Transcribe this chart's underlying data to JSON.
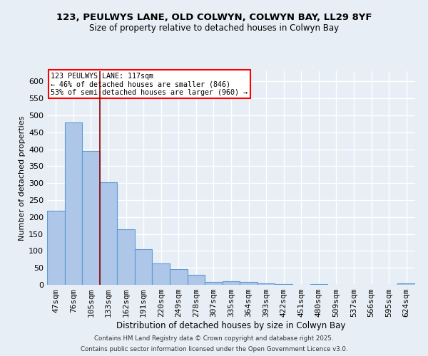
{
  "title_line1": "123, PEULWYS LANE, OLD COLWYN, COLWYN BAY, LL29 8YF",
  "title_line2": "Size of property relative to detached houses in Colwyn Bay",
  "xlabel": "Distribution of detached houses by size in Colwyn Bay",
  "ylabel": "Number of detached properties",
  "footer_line1": "Contains HM Land Registry data © Crown copyright and database right 2025.",
  "footer_line2": "Contains public sector information licensed under the Open Government Licence v3.0.",
  "categories": [
    "47sqm",
    "76sqm",
    "105sqm",
    "133sqm",
    "162sqm",
    "191sqm",
    "220sqm",
    "249sqm",
    "278sqm",
    "307sqm",
    "335sqm",
    "364sqm",
    "393sqm",
    "422sqm",
    "451sqm",
    "480sqm",
    "509sqm",
    "537sqm",
    "566sqm",
    "595sqm",
    "624sqm"
  ],
  "values": [
    218,
    478,
    395,
    302,
    163,
    105,
    63,
    47,
    30,
    9,
    10,
    8,
    4,
    2,
    0,
    3,
    0,
    1,
    0,
    0,
    4
  ],
  "bar_color": "#aec6e8",
  "bar_edge_color": "#5b9bd5",
  "bg_color": "#e8eef5",
  "grid_color": "#ffffff",
  "red_line_x": 2.5,
  "annotation_text_line1": "123 PEULWYS LANE: 117sqm",
  "annotation_text_line2": "← 46% of detached houses are smaller (846)",
  "annotation_text_line3": "53% of semi-detached houses are larger (960) →",
  "ylim": [
    0,
    630
  ],
  "yticks": [
    0,
    50,
    100,
    150,
    200,
    250,
    300,
    350,
    400,
    450,
    500,
    550,
    600
  ]
}
